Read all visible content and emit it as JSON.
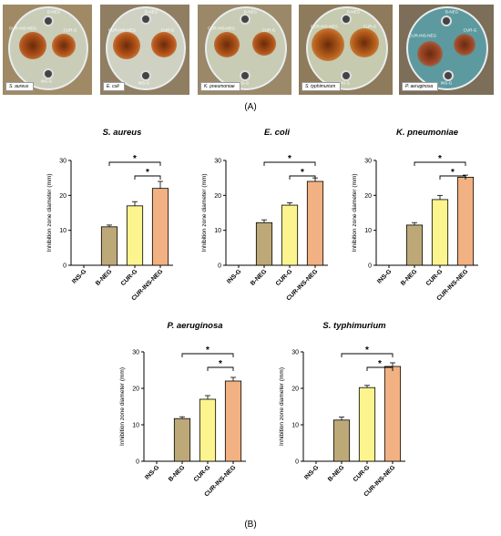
{
  "figure": {
    "panel_a_label": "(A)",
    "panel_b_label": "(B)"
  },
  "photos": [
    {
      "caption": "S. aureus",
      "labels": [
        "B-NEG",
        "CUR-INS-NEG",
        "CUR-G",
        "INS-G"
      ]
    },
    {
      "caption": "E. coli",
      "labels": [
        "B-NEG",
        "CUR-INS-NEG",
        "CUR-G",
        "INS-G"
      ]
    },
    {
      "caption": "K. pneumoniae",
      "labels": [
        "B-NEG",
        "CUR-INS-NEG",
        "CUR-G",
        "INS-G"
      ]
    },
    {
      "caption": "S. typhimurium",
      "labels": [
        "B-NEG",
        "CUR-INS-NEG",
        "CUR-G",
        "INS-G"
      ]
    },
    {
      "caption": "P. aeruginosa",
      "labels": [
        "B-NEG",
        "CUR-INS-NEG",
        "CUR-G",
        "INS-G"
      ]
    }
  ],
  "colors": {
    "B-NEG": "#bda978",
    "CUR-G": "#fcf48f",
    "CUR-INS-NEG": "#f2b182",
    "axis": "#000000"
  },
  "chart_data": [
    {
      "type": "bar",
      "title": "S. aureus",
      "ylabel": "Inhibition zone diameter (mm)",
      "categories": [
        "INS-G",
        "B-NEG",
        "CUR-G",
        "CUR-INS-NEG"
      ],
      "values": [
        0,
        11,
        17,
        22
      ],
      "errors": [
        0,
        0.5,
        1.2,
        2
      ],
      "ylim": [
        0,
        30
      ],
      "yticks": [
        "0",
        "10",
        "20",
        "30"
      ],
      "significance": [
        {
          "from": "B-NEG",
          "to": "CUR-INS-NEG",
          "label": "*"
        },
        {
          "from": "CUR-G",
          "to": "CUR-INS-NEG",
          "label": "*"
        }
      ]
    },
    {
      "type": "bar",
      "title": "E. coli",
      "ylabel": "Inhibition zone diameter (mm)",
      "categories": [
        "INS-G",
        "B-NEG",
        "CUR-G",
        "CUR-INS-NEG"
      ],
      "values": [
        0,
        12.2,
        17.2,
        24
      ],
      "errors": [
        0,
        0.8,
        0.7,
        1
      ],
      "ylim": [
        0,
        30
      ],
      "yticks": [
        "0",
        "10",
        "20",
        "30"
      ],
      "significance": [
        {
          "from": "B-NEG",
          "to": "CUR-INS-NEG",
          "label": "*"
        },
        {
          "from": "CUR-G",
          "to": "CUR-INS-NEG",
          "label": "*"
        }
      ]
    },
    {
      "type": "bar",
      "title": "K. pneumoniae",
      "ylabel": "Inhibition zone diameter (mm)",
      "categories": [
        "INS-G",
        "B-NEG",
        "CUR-G",
        "CUR-INS-NEG"
      ],
      "values": [
        0,
        11.5,
        18.8,
        25.2
      ],
      "errors": [
        0,
        0.7,
        1.2,
        0.6
      ],
      "ylim": [
        0,
        30
      ],
      "yticks": [
        "0",
        "10",
        "20",
        "30"
      ],
      "significance": [
        {
          "from": "B-NEG",
          "to": "CUR-INS-NEG",
          "label": "*"
        },
        {
          "from": "CUR-G",
          "to": "CUR-INS-NEG",
          "label": "*"
        }
      ]
    },
    {
      "type": "bar",
      "title": "P. aeruginosa",
      "ylabel": "Inhibition zone diameter (mm)",
      "categories": [
        "INS-G",
        "B-NEG",
        "CUR-G",
        "CUR-INS-NEG"
      ],
      "values": [
        0,
        11.7,
        17,
        22
      ],
      "errors": [
        0,
        0.5,
        1,
        1
      ],
      "ylim": [
        0,
        30
      ],
      "yticks": [
        "0",
        "10",
        "20",
        "30"
      ],
      "significance": [
        {
          "from": "B-NEG",
          "to": "CUR-INS-NEG",
          "label": "*"
        },
        {
          "from": "CUR-G",
          "to": "CUR-INS-NEG",
          "label": "*"
        }
      ]
    },
    {
      "type": "bar",
      "title": "S. typhimurium",
      "ylabel": "Inhibition zone diameter (mm)",
      "categories": [
        "INS-G",
        "B-NEG",
        "CUR-G",
        "CUR-INS-NEG"
      ],
      "values": [
        0,
        11.3,
        20.2,
        26
      ],
      "errors": [
        0,
        0.8,
        0.6,
        1
      ],
      "ylim": [
        0,
        30
      ],
      "yticks": [
        "0",
        "10",
        "20",
        "30"
      ],
      "significance": [
        {
          "from": "B-NEG",
          "to": "CUR-INS-NEG",
          "label": "*"
        },
        {
          "from": "CUR-G",
          "to": "CUR-INS-NEG",
          "label": "*"
        }
      ]
    }
  ]
}
